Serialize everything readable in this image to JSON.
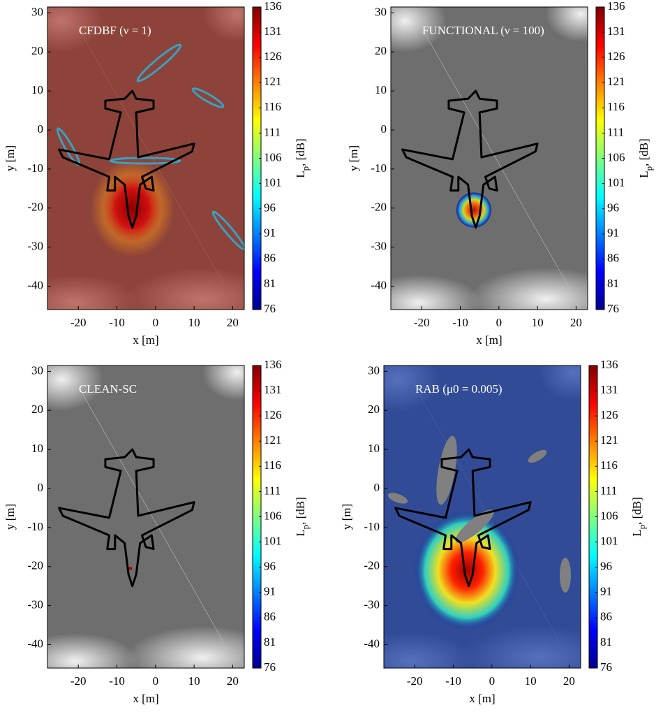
{
  "chart_data": [
    {
      "type": "map",
      "title": "CFDBF (ν = 1)",
      "xlabel": "x [m]",
      "ylabel": "y [m]",
      "colorbar_label": [
        "L",
        "p",
        ", [dB]"
      ],
      "xlim": [
        -28,
        23
      ],
      "ylim": [
        -46,
        31.5
      ],
      "xticks": [
        -20,
        -10,
        0,
        10,
        20
      ],
      "yticks": [
        -40,
        -30,
        -20,
        -10,
        0,
        10,
        20,
        30
      ],
      "clim": [
        76,
        136
      ],
      "cticks": [
        76,
        81,
        86,
        91,
        96,
        101,
        106,
        111,
        116,
        121,
        126,
        131,
        136
      ]
    },
    {
      "type": "map",
      "title": "FUNCTIONAL (ν = 100)",
      "xlabel": "x [m]",
      "ylabel": "y [m]",
      "colorbar_label": [
        "L",
        "p",
        ", [dB]"
      ],
      "xlim": [
        -28,
        23
      ],
      "ylim": [
        -46,
        31.5
      ],
      "xticks": [
        -20,
        -10,
        0,
        10,
        20
      ],
      "yticks": [
        -40,
        -30,
        -20,
        -10,
        0,
        10,
        20,
        30
      ],
      "clim": [
        76,
        136
      ],
      "cticks": [
        76,
        81,
        86,
        91,
        96,
        101,
        106,
        111,
        116,
        121,
        126,
        131,
        136
      ]
    },
    {
      "type": "map",
      "title": "CLEAN-SC",
      "xlabel": "x [m]",
      "ylabel": "y [m]",
      "colorbar_label": [
        "L",
        "p",
        ", [dB]"
      ],
      "xlim": [
        -28,
        23
      ],
      "ylim": [
        -46,
        31.5
      ],
      "xticks": [
        -20,
        -10,
        0,
        10,
        20
      ],
      "yticks": [
        -40,
        -30,
        -20,
        -10,
        0,
        10,
        20,
        30
      ],
      "clim": [
        76,
        136
      ],
      "cticks": [
        76,
        81,
        86,
        91,
        96,
        101,
        106,
        111,
        116,
        121,
        126,
        131,
        136
      ]
    },
    {
      "type": "map",
      "title": "RAB (μ0 = 0.005)",
      "xlabel": "x [m]",
      "ylabel": "y [m]",
      "colorbar_label": [
        "L",
        "p",
        ", [dB]"
      ],
      "xlim": [
        -28,
        23
      ],
      "ylim": [
        -46,
        31.5
      ],
      "xticks": [
        -20,
        -10,
        0,
        10,
        20
      ],
      "yticks": [
        -40,
        -30,
        -20,
        -10,
        0,
        10,
        20,
        30
      ],
      "clim": [
        76,
        136
      ],
      "cticks": [
        76,
        81,
        86,
        91,
        96,
        101,
        106,
        111,
        116,
        121,
        126,
        131,
        136
      ]
    }
  ]
}
